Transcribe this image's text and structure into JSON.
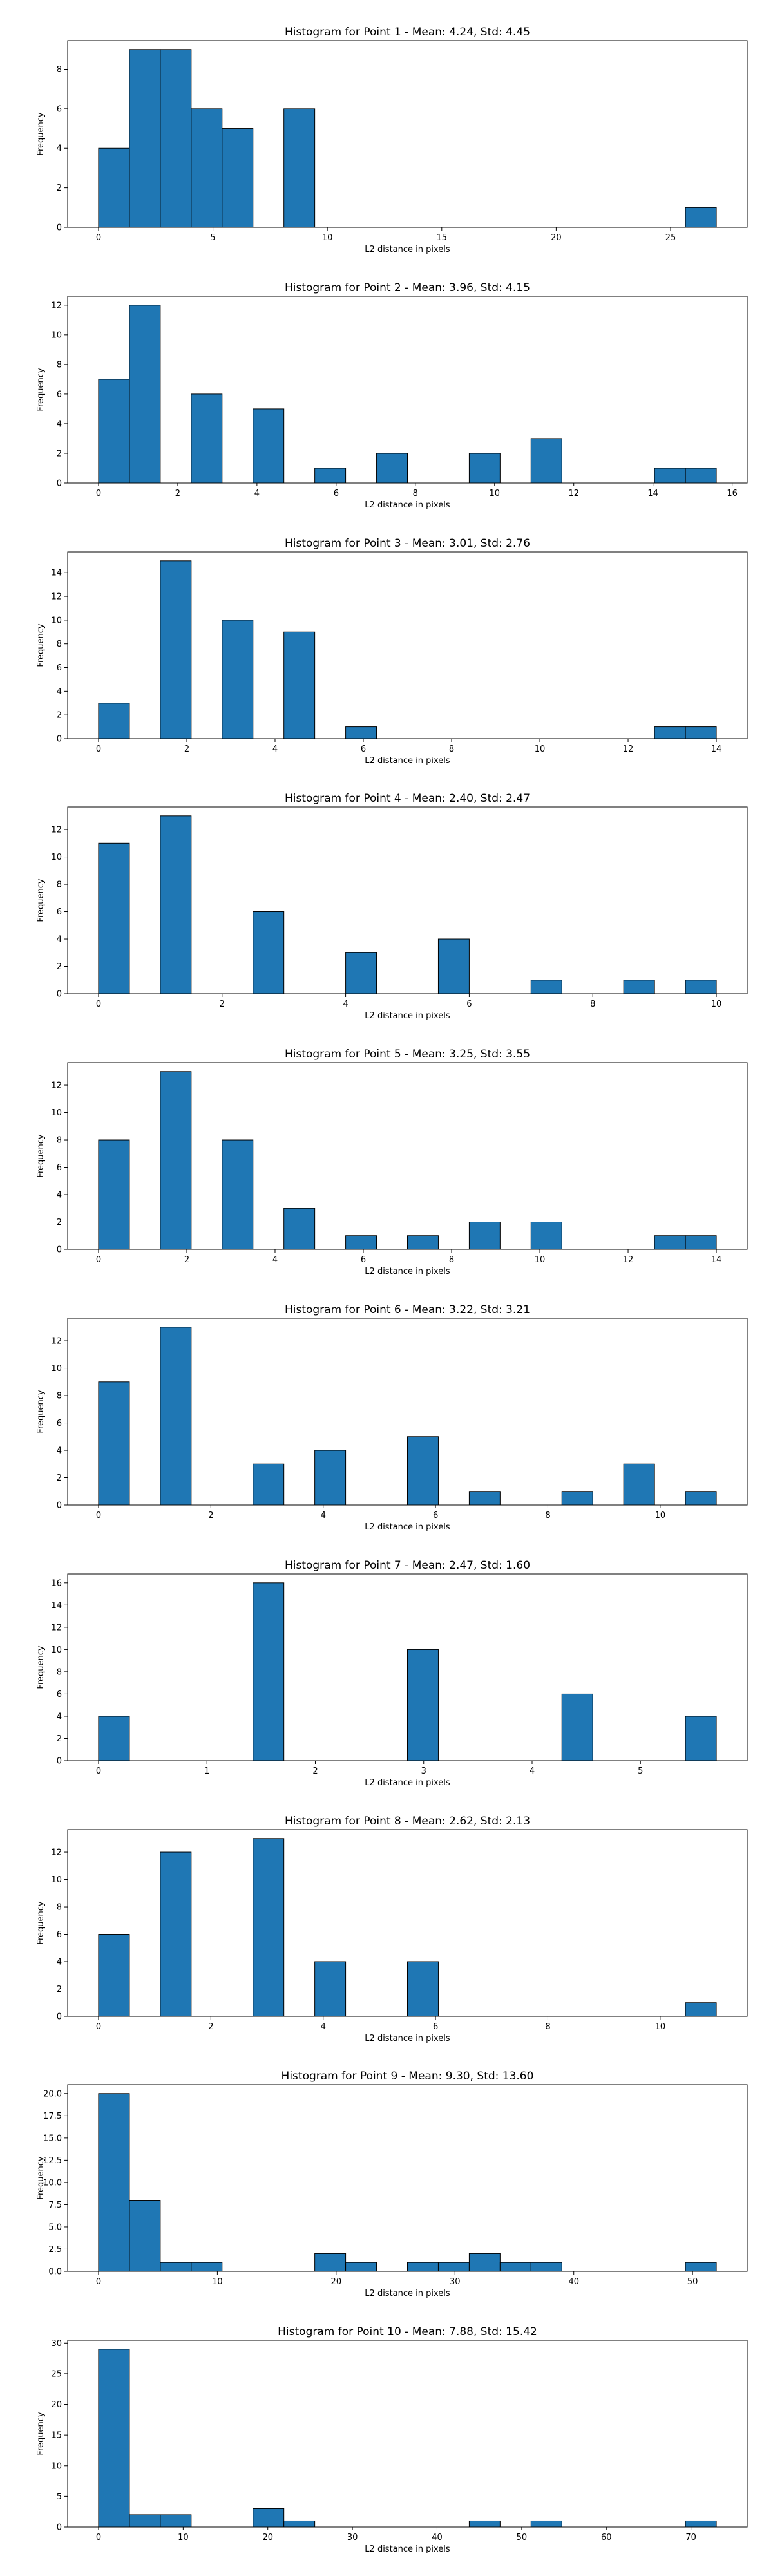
{
  "chart_data": [
    {
      "type": "bar",
      "title": "Histogram for Point 1 - Mean: 4.24, Std: 4.45",
      "xlabel": "L2 distance in pixels",
      "ylabel": "Frequency",
      "xlim": [
        -1.35,
        28.35
      ],
      "ylim": [
        0,
        9.45
      ],
      "bin_width": 1.35,
      "bins": [
        [
          0,
          4
        ],
        [
          1.35,
          9
        ],
        [
          2.7,
          9
        ],
        [
          4.05,
          6
        ],
        [
          5.4,
          5
        ],
        [
          8.1,
          6
        ],
        [
          25.65,
          1
        ]
      ],
      "xticks": [
        0,
        5,
        10,
        15,
        20,
        25
      ],
      "yticks": [
        0,
        2,
        4,
        6,
        8
      ],
      "ytick_labels": [
        "0",
        "2",
        "4",
        "6",
        "8"
      ]
    },
    {
      "type": "bar",
      "title": "Histogram for Point 2 - Mean: 3.96, Std: 4.15",
      "xlabel": "L2 distance in pixels",
      "ylabel": "Frequency",
      "xlim": [
        -0.78,
        16.38
      ],
      "ylim": [
        0,
        12.6
      ],
      "bin_width": 0.78,
      "bins": [
        [
          0,
          7
        ],
        [
          0.78,
          12
        ],
        [
          2.34,
          6
        ],
        [
          3.9,
          5
        ],
        [
          5.46,
          1
        ],
        [
          7.02,
          2
        ],
        [
          9.36,
          2
        ],
        [
          10.92,
          3
        ],
        [
          14.04,
          1
        ],
        [
          14.82,
          1
        ]
      ],
      "xticks": [
        0,
        2,
        4,
        6,
        8,
        10,
        12,
        14,
        16
      ],
      "yticks": [
        0,
        2,
        4,
        6,
        8,
        10,
        12
      ],
      "ytick_labels": [
        "0",
        "2",
        "4",
        "6",
        "8",
        "10",
        "12"
      ]
    },
    {
      "type": "bar",
      "title": "Histogram for Point 3 - Mean: 3.01, Std: 2.76",
      "xlabel": "L2 distance in pixels",
      "ylabel": "Frequency",
      "xlim": [
        -0.7,
        14.7
      ],
      "ylim": [
        0,
        15.75
      ],
      "bin_width": 0.7,
      "bins": [
        [
          0,
          3
        ],
        [
          1.4,
          15
        ],
        [
          2.8,
          10
        ],
        [
          4.2,
          9
        ],
        [
          5.6,
          1
        ],
        [
          12.6,
          1
        ],
        [
          13.3,
          1
        ]
      ],
      "xticks": [
        0,
        2,
        4,
        6,
        8,
        10,
        12,
        14
      ],
      "yticks": [
        0,
        2,
        4,
        6,
        8,
        10,
        12,
        14
      ],
      "ytick_labels": [
        "0",
        "2",
        "4",
        "6",
        "8",
        "10",
        "12",
        "14"
      ]
    },
    {
      "type": "bar",
      "title": "Histogram for Point 4 - Mean: 2.40, Std: 2.47",
      "xlabel": "L2 distance in pixels",
      "ylabel": "Frequency",
      "xlim": [
        -0.5,
        10.5
      ],
      "ylim": [
        0,
        13.65
      ],
      "bin_width": 0.5,
      "bins": [
        [
          0,
          11
        ],
        [
          1,
          13
        ],
        [
          2.5,
          6
        ],
        [
          4,
          3
        ],
        [
          5.5,
          4
        ],
        [
          7,
          1
        ],
        [
          8.5,
          1
        ],
        [
          9.5,
          1
        ]
      ],
      "xticks": [
        0,
        2,
        4,
        6,
        8,
        10
      ],
      "yticks": [
        0,
        2,
        4,
        6,
        8,
        10,
        12
      ],
      "ytick_labels": [
        "0",
        "2",
        "4",
        "6",
        "8",
        "10",
        "12"
      ]
    },
    {
      "type": "bar",
      "title": "Histogram for Point 5 - Mean: 3.25, Std: 3.55",
      "xlabel": "L2 distance in pixels",
      "ylabel": "Frequency",
      "xlim": [
        -0.7,
        14.7
      ],
      "ylim": [
        0,
        13.65
      ],
      "bin_width": 0.7,
      "bins": [
        [
          0,
          8
        ],
        [
          1.4,
          13
        ],
        [
          2.8,
          8
        ],
        [
          4.2,
          3
        ],
        [
          5.6,
          1
        ],
        [
          7,
          1
        ],
        [
          8.4,
          2
        ],
        [
          9.8,
          2
        ],
        [
          12.6,
          1
        ],
        [
          13.3,
          1
        ]
      ],
      "xticks": [
        0,
        2,
        4,
        6,
        8,
        10,
        12,
        14
      ],
      "yticks": [
        0,
        2,
        4,
        6,
        8,
        10,
        12
      ],
      "ytick_labels": [
        "0",
        "2",
        "4",
        "6",
        "8",
        "10",
        "12"
      ]
    },
    {
      "type": "bar",
      "title": "Histogram for Point 6 - Mean: 3.22, Std: 3.21",
      "xlabel": "L2 distance in pixels",
      "ylabel": "Frequency",
      "xlim": [
        -0.55,
        11.55
      ],
      "ylim": [
        0,
        13.65
      ],
      "bin_width": 0.55,
      "bins": [
        [
          0,
          9
        ],
        [
          1.1,
          13
        ],
        [
          2.75,
          3
        ],
        [
          3.85,
          4
        ],
        [
          5.5,
          5
        ],
        [
          6.6,
          1
        ],
        [
          8.25,
          1
        ],
        [
          9.35,
          3
        ],
        [
          10.45,
          1
        ]
      ],
      "xticks": [
        0,
        2,
        4,
        6,
        8,
        10
      ],
      "yticks": [
        0,
        2,
        4,
        6,
        8,
        10,
        12
      ],
      "ytick_labels": [
        "0",
        "2",
        "4",
        "6",
        "8",
        "10",
        "12"
      ]
    },
    {
      "type": "bar",
      "title": "Histogram for Point 7 - Mean: 2.47, Std: 1.60",
      "xlabel": "L2 distance in pixels",
      "ylabel": "Frequency",
      "xlim": [
        -0.285,
        5.985
      ],
      "ylim": [
        0,
        16.8
      ],
      "bin_width": 0.285,
      "bins": [
        [
          0,
          4
        ],
        [
          1.425,
          16
        ],
        [
          2.85,
          10
        ],
        [
          4.275,
          6
        ],
        [
          5.415,
          4
        ]
      ],
      "xticks": [
        0,
        1,
        2,
        3,
        4,
        5
      ],
      "yticks": [
        0,
        2,
        4,
        6,
        8,
        10,
        12,
        14,
        16
      ],
      "ytick_labels": [
        "0",
        "2",
        "4",
        "6",
        "8",
        "10",
        "12",
        "14",
        "16"
      ]
    },
    {
      "type": "bar",
      "title": "Histogram for Point 8 - Mean: 2.62, Std: 2.13",
      "xlabel": "L2 distance in pixels",
      "ylabel": "Frequency",
      "xlim": [
        -0.55,
        11.55
      ],
      "ylim": [
        0,
        13.65
      ],
      "bin_width": 0.55,
      "bins": [
        [
          0,
          6
        ],
        [
          1.1,
          12
        ],
        [
          2.75,
          13
        ],
        [
          3.85,
          4
        ],
        [
          5.5,
          4
        ],
        [
          10.45,
          1
        ]
      ],
      "xticks": [
        0,
        2,
        4,
        6,
        8,
        10
      ],
      "yticks": [
        0,
        2,
        4,
        6,
        8,
        10,
        12
      ],
      "ytick_labels": [
        "0",
        "2",
        "4",
        "6",
        "8",
        "10",
        "12"
      ]
    },
    {
      "type": "bar",
      "title": "Histogram for Point 9 - Mean: 9.30, Std: 13.60",
      "xlabel": "L2 distance in pixels",
      "ylabel": "Frequency",
      "xlim": [
        -2.6,
        54.6
      ],
      "ylim": [
        0,
        21
      ],
      "bin_width": 2.6,
      "bins": [
        [
          0,
          20
        ],
        [
          2.6,
          8
        ],
        [
          5.2,
          1
        ],
        [
          7.8,
          1
        ],
        [
          18.2,
          2
        ],
        [
          20.8,
          1
        ],
        [
          26,
          1
        ],
        [
          28.6,
          1
        ],
        [
          31.2,
          2
        ],
        [
          33.8,
          1
        ],
        [
          36.4,
          1
        ],
        [
          49.4,
          1
        ]
      ],
      "xticks": [
        0,
        10,
        20,
        30,
        40,
        50
      ],
      "yticks": [
        0,
        2.5,
        5,
        7.5,
        10,
        12.5,
        15,
        17.5,
        20
      ],
      "ytick_labels": [
        "0.0",
        "2.5",
        "5.0",
        "7.5",
        "10.0",
        "12.5",
        "15.0",
        "17.5",
        "20.0"
      ]
    },
    {
      "type": "bar",
      "title": "Histogram for Point 10 - Mean: 7.88, Std: 15.42",
      "xlabel": "L2 distance in pixels",
      "ylabel": "Frequency",
      "xlim": [
        -3.65,
        76.65
      ],
      "ylim": [
        0,
        30.45
      ],
      "bin_width": 3.65,
      "bins": [
        [
          0,
          29
        ],
        [
          3.65,
          2
        ],
        [
          7.3,
          2
        ],
        [
          18.25,
          3
        ],
        [
          21.9,
          1
        ],
        [
          43.8,
          1
        ],
        [
          51.1,
          1
        ],
        [
          69.35,
          1
        ]
      ],
      "xticks": [
        0,
        10,
        20,
        30,
        40,
        50,
        60,
        70
      ],
      "yticks": [
        0,
        5,
        10,
        15,
        20,
        25,
        30
      ],
      "ytick_labels": [
        "0",
        "5",
        "10",
        "15",
        "20",
        "25",
        "30"
      ]
    }
  ]
}
